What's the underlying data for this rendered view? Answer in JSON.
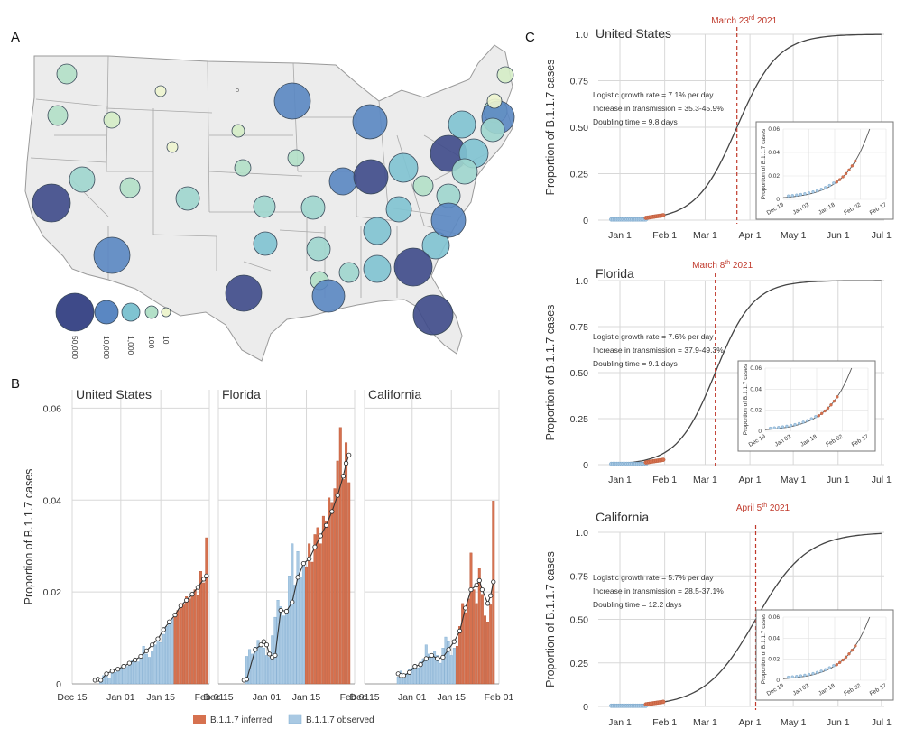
{
  "panel_labels": {
    "a": "A",
    "b": "B",
    "c": "C"
  },
  "colors": {
    "inferred": "#d6714f",
    "observed": "#a9c9e3",
    "line": "#333333",
    "vline": "#c0392b",
    "map_fill": "#ececec",
    "map_stroke": "#9a9a9a"
  },
  "map_legend": {
    "labels": [
      "50,000",
      "10,000",
      "1,000",
      "100",
      "10"
    ],
    "colors": [
      "#3e4a89",
      "#5a87c2",
      "#7fc3d1",
      "#b3e0c8",
      "#eef5cf"
    ]
  },
  "bar_legend": {
    "inferred": "B.1.1.7 inferred",
    "observed": "B.1.1.7 observed"
  },
  "chart_data": [
    {
      "type": "bar",
      "title": "United States",
      "ylabel": "Proportion of B.1.1.7 cases",
      "xticks": [
        "Dec 15",
        "Jan 01",
        "Jan 15",
        "Feb 01"
      ],
      "yticks": [
        "0",
        "0.02",
        "0.04",
        "0.06"
      ],
      "ylim": [
        0,
        0.06
      ],
      "day_range": [
        0,
        48
      ],
      "series": [
        {
          "name": "B.1.1.7 observed",
          "days": [
            10,
            11,
            12,
            13,
            14,
            15,
            16,
            17,
            18,
            19,
            20,
            21,
            22,
            23,
            24,
            25,
            26,
            27,
            28,
            29,
            30,
            31,
            32,
            33,
            34,
            35
          ],
          "values": [
            0.0012,
            0.0018,
            0.002,
            0.0012,
            0.0028,
            0.0025,
            0.0032,
            0.0035,
            0.0042,
            0.0038,
            0.0045,
            0.005,
            0.0055,
            0.0048,
            0.006,
            0.0082,
            0.0065,
            0.0058,
            0.0072,
            0.0085,
            0.0098,
            0.009,
            0.0108,
            0.0125,
            0.0135,
            0.0142
          ]
        },
        {
          "name": "B.1.1.7 inferred",
          "days": [
            36,
            37,
            38,
            39,
            40,
            41,
            42,
            43,
            44,
            45,
            46,
            47
          ],
          "values": [
            0.015,
            0.016,
            0.0175,
            0.0172,
            0.019,
            0.0185,
            0.0195,
            0.0205,
            0.0192,
            0.0245,
            0.022,
            0.0318
          ]
        }
      ],
      "fit": {
        "days": [
          8,
          9,
          10,
          12,
          14,
          16,
          18,
          20,
          22,
          24,
          26,
          28,
          30,
          32,
          34,
          36,
          38,
          40,
          42,
          44,
          46,
          47
        ],
        "values": [
          0.0008,
          0.001,
          0.0008,
          0.0022,
          0.0028,
          0.0032,
          0.0038,
          0.0045,
          0.0052,
          0.006,
          0.0072,
          0.0085,
          0.0098,
          0.0118,
          0.0135,
          0.015,
          0.017,
          0.0182,
          0.0195,
          0.021,
          0.0228,
          0.0235
        ]
      }
    },
    {
      "type": "bar",
      "title": "Florida",
      "xticks": [
        "Dec 15",
        "Jan 01",
        "Jan 15",
        "Feb 01"
      ],
      "ylim": [
        0,
        0.06
      ],
      "day_range": [
        0,
        48
      ],
      "series": [
        {
          "name": "B.1.1.7 observed",
          "days": [
            10,
            11,
            12,
            13,
            14,
            15,
            16,
            17,
            18,
            19,
            20,
            21,
            22,
            23,
            24,
            25,
            26,
            27,
            28,
            29,
            30
          ],
          "values": [
            0.006,
            0.0075,
            0.0065,
            0.008,
            0.0095,
            0.0085,
            0.0078,
            0.0062,
            0.0058,
            0.0105,
            0.0145,
            0.0182,
            0.0168,
            0.0148,
            0.0155,
            0.0235,
            0.0305,
            0.0215,
            0.0288,
            0.0232,
            0.0265
          ]
        },
        {
          "name": "B.1.1.7 inferred",
          "days": [
            31,
            32,
            33,
            34,
            35,
            36,
            37,
            38,
            39,
            40,
            41,
            42,
            43,
            44,
            45,
            46
          ],
          "values": [
            0.0255,
            0.0305,
            0.0265,
            0.0325,
            0.034,
            0.0305,
            0.0365,
            0.0355,
            0.0405,
            0.0395,
            0.0425,
            0.0485,
            0.0558,
            0.0445,
            0.0525,
            0.0438
          ]
        }
      ],
      "fit": {
        "days": [
          9,
          10,
          13,
          15,
          16,
          17,
          18,
          19,
          20,
          22,
          24,
          26,
          28,
          30,
          32,
          34,
          36,
          38,
          40,
          42,
          44,
          45,
          46
        ],
        "values": [
          0.0008,
          0.001,
          0.0075,
          0.0085,
          0.0092,
          0.0085,
          0.0065,
          0.0058,
          0.0062,
          0.016,
          0.0158,
          0.0178,
          0.0232,
          0.0262,
          0.0272,
          0.0298,
          0.0322,
          0.0345,
          0.0375,
          0.041,
          0.0452,
          0.048,
          0.0498
        ]
      }
    },
    {
      "type": "bar",
      "title": "California",
      "xticks": [
        "Dec 15",
        "Jan 01",
        "Jan 15",
        "Feb 01"
      ],
      "ylim": [
        0,
        0.06
      ],
      "day_range": [
        0,
        48
      ],
      "series": [
        {
          "name": "B.1.1.7 observed",
          "days": [
            12,
            13,
            14,
            15,
            16,
            17,
            18,
            19,
            20,
            21,
            22,
            23,
            24,
            25,
            26,
            27,
            28,
            29,
            30,
            31,
            32
          ],
          "values": [
            0.0015,
            0.0028,
            0.0012,
            0.0022,
            0.0032,
            0.0035,
            0.0042,
            0.0035,
            0.0048,
            0.0055,
            0.0085,
            0.0065,
            0.0058,
            0.007,
            0.0062,
            0.0045,
            0.0078,
            0.0102,
            0.0092,
            0.0062,
            0.0078
          ]
        },
        {
          "name": "B.1.1.7 inferred",
          "days": [
            33,
            34,
            35,
            36,
            37,
            38,
            39,
            40,
            41,
            42,
            43,
            44,
            45,
            46
          ],
          "values": [
            0.0082,
            0.0125,
            0.0175,
            0.0155,
            0.0185,
            0.0285,
            0.0205,
            0.0175,
            0.0252,
            0.0195,
            0.0148,
            0.0135,
            0.0172,
            0.0398
          ]
        }
      ],
      "fit": {
        "days": [
          12,
          13,
          14,
          16,
          18,
          20,
          22,
          24,
          26,
          28,
          30,
          32,
          34,
          36,
          38,
          40,
          41,
          42,
          44,
          45,
          46
        ],
        "values": [
          0.0022,
          0.0018,
          0.0018,
          0.0025,
          0.0038,
          0.0042,
          0.0055,
          0.0062,
          0.0055,
          0.0058,
          0.0075,
          0.0092,
          0.0115,
          0.0165,
          0.0205,
          0.0215,
          0.0225,
          0.0205,
          0.0175,
          0.0192,
          0.0222
        ]
      }
    },
    {
      "type": "line",
      "title": "United States",
      "ylabel": "Proportion of B.1.1.7 cases",
      "xticks": [
        "Jan 1",
        "Feb 1",
        "Mar 1",
        "Apr 1",
        "May 1",
        "Jun 1",
        "Jul 1"
      ],
      "yticks": [
        "0",
        "0.25",
        "0.50",
        "0.75",
        "1.0"
      ],
      "ylim": [
        0,
        1.0
      ],
      "xlim_days": [
        -15,
        183
      ],
      "logistic": {
        "rate": 0.071,
        "midpoint_day": 81
      },
      "marker": {
        "day": 81,
        "label_main": "March 23",
        "label_sup": "rd",
        "label_year": " 2021"
      },
      "stats": [
        "Logistic growth rate = 7.1% per day",
        "Increase in transmission = 35.3-45.9%",
        "Doubling time = 9.8 days"
      ],
      "inset": {
        "xticks": [
          "Dec 19",
          "Jan 03",
          "Jan 18",
          "Feb 02",
          "Feb 17"
        ],
        "yticks": [
          "0",
          "0.02",
          "0.04",
          "0.06"
        ],
        "ylabel": "Proportion of B.1.1.7 cases"
      }
    },
    {
      "type": "line",
      "title": "Florida",
      "ylabel": "Proportion of B.1.1.7 cases",
      "xticks": [
        "Jan 1",
        "Feb 1",
        "Mar 1",
        "Apr 1",
        "May 1",
        "Jun 1",
        "Jul 1"
      ],
      "yticks": [
        "0",
        "0.25",
        "0.50",
        "0.75",
        "1.0"
      ],
      "ylim": [
        0,
        1.0
      ],
      "xlim_days": [
        -15,
        183
      ],
      "logistic": {
        "rate": 0.076,
        "midpoint_day": 66
      },
      "marker": {
        "day": 66,
        "label_main": "March 8",
        "label_sup": "th",
        "label_year": " 2021"
      },
      "stats": [
        "Logistic growth rate = 7.6% per day",
        "Increase in transmission = 37.9-49.3%",
        "Doubling time = 9.1 days"
      ],
      "inset": {
        "xticks": [
          "Dec 19",
          "Jan 03",
          "Jan 18",
          "Feb 02",
          "Feb 17"
        ],
        "yticks": [
          "0",
          "0.02",
          "0.04",
          "0.06"
        ],
        "ylabel": "Proportion of B.1.1.7 cases"
      }
    },
    {
      "type": "line",
      "title": "California",
      "ylabel": "Proportion of B.1.1.7 cases",
      "xticks": [
        "Jan 1",
        "Feb 1",
        "Mar 1",
        "Apr 1",
        "May 1",
        "Jun 1",
        "Jul 1"
      ],
      "yticks": [
        "0",
        "0.25",
        "0.50",
        "0.75",
        "1.0"
      ],
      "ylim": [
        0,
        1.0
      ],
      "xlim_days": [
        -15,
        183
      ],
      "logistic": {
        "rate": 0.057,
        "midpoint_day": 94
      },
      "marker": {
        "day": 94,
        "label_main": "April 5",
        "label_sup": "th",
        "label_year": " 2021"
      },
      "stats": [
        "Logistic growth rate = 5.7% per day",
        "Increase in transmission = 28.5-37.1%",
        "Doubling time = 12.2 days"
      ],
      "inset": {
        "xticks": [
          "Dec 19",
          "Jan 03",
          "Jan 18",
          "Feb 02",
          "Feb 17"
        ],
        "yticks": [
          "0",
          "0.02",
          "0.04",
          "0.06"
        ],
        "ylabel": "Proportion of B.1.1.7 cases"
      }
    }
  ]
}
